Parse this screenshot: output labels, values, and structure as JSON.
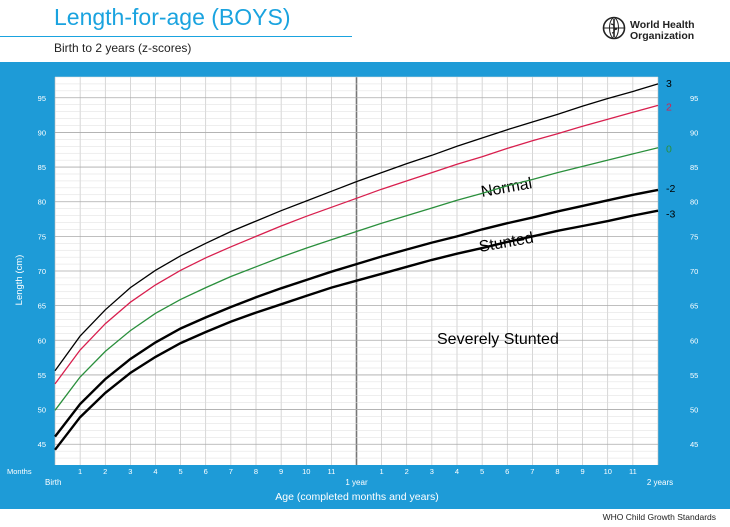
{
  "header": {
    "title": "Length-for-age (BOYS)",
    "subtitle": "Birth to 2 years (z-scores)",
    "org_name": "World Health Organization",
    "footer": "WHO Child Growth Standards"
  },
  "colors": {
    "brand": "#1aa3df",
    "frame": "#1e9bd7",
    "severe_fill": "#ef7676",
    "stunted_fill": "#fff04a",
    "z3": "#000000",
    "z2": "#d81f4e",
    "z0": "#2a8f3c",
    "zm2": "#000000",
    "zm3": "#000000"
  },
  "chart_data": {
    "type": "line",
    "title": "Length-for-age (BOYS)",
    "subtitle": "Birth to 2 years (z-scores)",
    "xlabel": "Age (completed months and years)",
    "ylabel": "Length (cm)",
    "xlim": [
      0,
      24
    ],
    "ylim": [
      42,
      98
    ],
    "grid": true,
    "x": [
      0,
      1,
      2,
      3,
      4,
      5,
      6,
      7,
      8,
      9,
      10,
      11,
      12,
      13,
      14,
      15,
      16,
      17,
      18,
      19,
      20,
      21,
      22,
      23,
      24
    ],
    "x_tick_labels": [
      "Birth",
      "1",
      "2",
      "3",
      "4",
      "5",
      "6",
      "7",
      "8",
      "9",
      "10",
      "11",
      "1 year",
      "1",
      "2",
      "3",
      "4",
      "5",
      "6",
      "7",
      "8",
      "9",
      "10",
      "11",
      "2 years"
    ],
    "months_label": "Months",
    "y_ticks": [
      45,
      50,
      55,
      60,
      65,
      70,
      75,
      80,
      85,
      90,
      95
    ],
    "series": [
      {
        "name": "3",
        "values": [
          55.6,
          60.6,
          64.4,
          67.6,
          70.1,
          72.2,
          74.0,
          75.7,
          77.2,
          78.7,
          80.1,
          81.5,
          82.9,
          84.2,
          85.5,
          86.7,
          88.0,
          89.2,
          90.4,
          91.5,
          92.6,
          93.8,
          94.9,
          95.9,
          97.0
        ]
      },
      {
        "name": "2",
        "values": [
          53.7,
          58.6,
          62.4,
          65.5,
          68.0,
          70.1,
          71.9,
          73.5,
          75.0,
          76.5,
          77.9,
          79.2,
          80.5,
          81.8,
          83.0,
          84.2,
          85.4,
          86.5,
          87.7,
          88.8,
          89.8,
          90.9,
          91.9,
          92.9,
          93.9
        ]
      },
      {
        "name": "0",
        "values": [
          49.9,
          54.7,
          58.4,
          61.4,
          63.9,
          65.9,
          67.6,
          69.2,
          70.6,
          72.0,
          73.3,
          74.5,
          75.7,
          76.9,
          78.0,
          79.1,
          80.2,
          81.2,
          82.3,
          83.2,
          84.2,
          85.1,
          86.0,
          86.9,
          87.8
        ]
      },
      {
        "name": "-2",
        "values": [
          46.1,
          50.8,
          54.4,
          57.3,
          59.7,
          61.7,
          63.3,
          64.8,
          66.2,
          67.5,
          68.7,
          69.9,
          71.0,
          72.1,
          73.1,
          74.1,
          75.0,
          76.0,
          76.9,
          77.7,
          78.6,
          79.4,
          80.2,
          81.0,
          81.7
        ]
      },
      {
        "name": "-3",
        "values": [
          44.2,
          48.9,
          52.4,
          55.3,
          57.6,
          59.6,
          61.2,
          62.7,
          64.0,
          65.2,
          66.4,
          67.6,
          68.6,
          69.6,
          70.6,
          71.6,
          72.5,
          73.3,
          74.2,
          75.0,
          75.8,
          76.5,
          77.2,
          78.0,
          78.7
        ]
      }
    ],
    "annotations": [
      "Normal",
      "Stunted",
      "Severely Stunted"
    ]
  }
}
